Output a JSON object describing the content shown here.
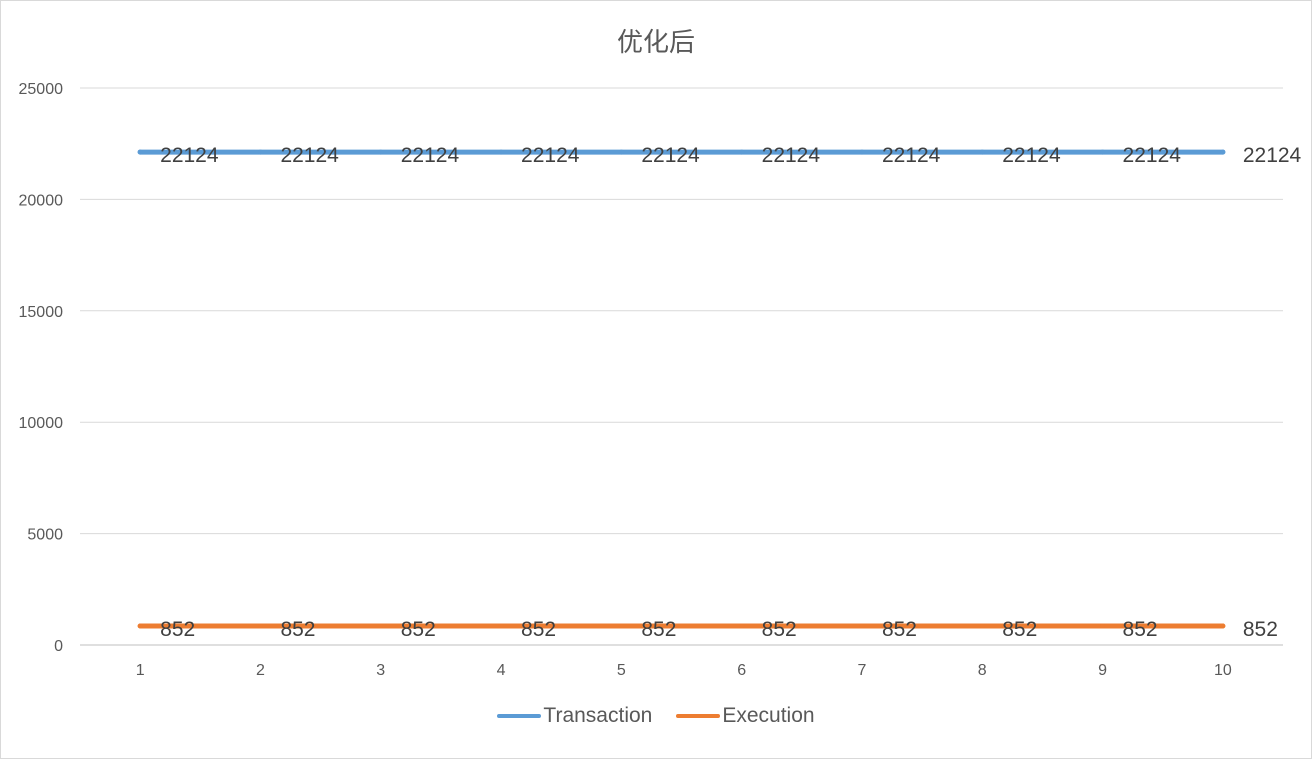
{
  "chart_data": {
    "type": "line",
    "title": "优化后",
    "xlabel": "",
    "ylabel": "",
    "categories": [
      "1",
      "2",
      "3",
      "4",
      "5",
      "6",
      "7",
      "8",
      "9",
      "10"
    ],
    "ylim": [
      0,
      25000
    ],
    "yticks": [
      0,
      5000,
      10000,
      15000,
      20000,
      25000
    ],
    "grid": true,
    "legend_position": "bottom",
    "data_labels": true,
    "series": [
      {
        "name": "Transaction",
        "color": "#5b9bd5",
        "values": [
          22124,
          22124,
          22124,
          22124,
          22124,
          22124,
          22124,
          22124,
          22124,
          22124
        ]
      },
      {
        "name": "Execution",
        "color": "#ed7d31",
        "values": [
          852,
          852,
          852,
          852,
          852,
          852,
          852,
          852,
          852,
          852
        ]
      }
    ]
  }
}
